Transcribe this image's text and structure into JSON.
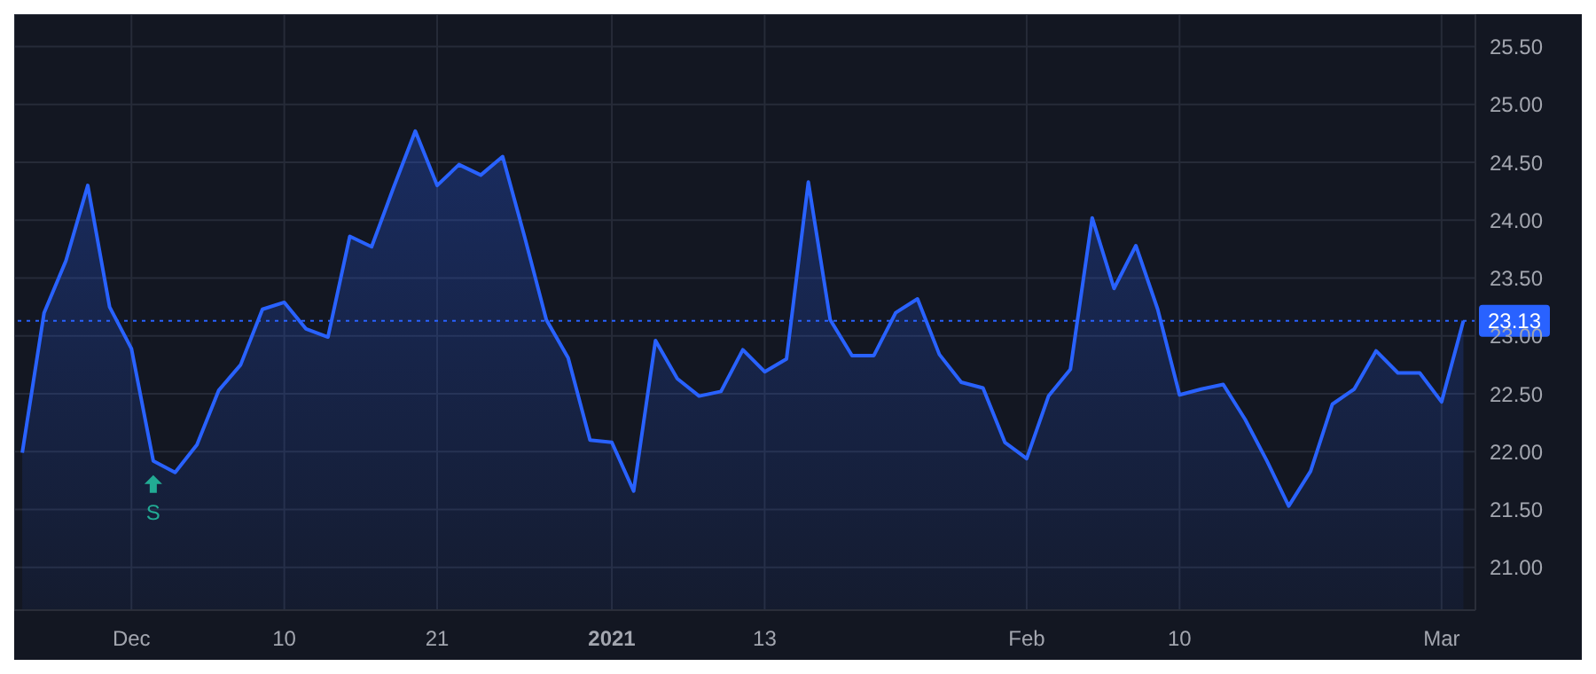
{
  "chart_data": {
    "type": "area",
    "categories": [
      null,
      null,
      null,
      null,
      null,
      "Dec",
      null,
      null,
      null,
      null,
      null,
      null,
      "10",
      null,
      null,
      null,
      null,
      null,
      null,
      "21",
      null,
      null,
      null,
      null,
      null,
      null,
      null,
      "2021",
      null,
      null,
      null,
      null,
      null,
      null,
      "13",
      null,
      null,
      null,
      null,
      null,
      null,
      null,
      null,
      null,
      null,
      null,
      "Feb",
      null,
      null,
      null,
      null,
      null,
      null,
      "10",
      null,
      null,
      null,
      null,
      null,
      null,
      null,
      null,
      null,
      null,
      null,
      "Mar",
      null
    ],
    "series": [
      {
        "color": "#2962ff",
        "values": [
          21.99,
          23.2,
          23.65,
          24.3,
          23.25,
          22.89,
          21.92,
          21.82,
          22.06,
          22.53,
          22.75,
          23.23,
          23.29,
          23.06,
          22.99,
          23.86,
          23.77,
          24.28,
          24.77,
          24.3,
          24.48,
          24.39,
          24.55,
          23.86,
          23.14,
          22.81,
          22.1,
          22.08,
          21.66,
          22.96,
          22.63,
          22.48,
          22.52,
          22.88,
          22.69,
          22.8,
          24.33,
          23.14,
          22.83,
          22.83,
          23.2,
          23.32,
          22.84,
          22.6,
          22.55,
          22.08,
          21.94,
          22.48,
          22.71,
          24.02,
          23.41,
          23.78,
          23.23,
          22.49,
          22.54,
          22.58,
          22.28,
          21.92,
          21.53,
          21.83,
          22.41,
          22.54,
          22.87,
          22.68,
          22.68,
          22.43,
          23.13
        ]
      }
    ],
    "ylim": [
      20.63,
      25.78
    ],
    "yticks": [
      {
        "value": 21,
        "label": "21.00"
      },
      {
        "value": 21.5,
        "label": "21.50"
      },
      {
        "value": 22,
        "label": "22.00"
      },
      {
        "value": 22.5,
        "label": "22.50"
      },
      {
        "value": 23,
        "label": "23.00"
      },
      {
        "value": 23.5,
        "label": "23.50"
      },
      {
        "value": 24,
        "label": "24.00"
      },
      {
        "value": 24.5,
        "label": "24.50"
      },
      {
        "value": 25,
        "label": "25.00"
      },
      {
        "value": 25.5,
        "label": "25.50"
      }
    ],
    "ref_lines": [
      {
        "axis": "y",
        "value": 23.13,
        "label": "23.13",
        "color": "#2962ff",
        "line_style": "dotted"
      }
    ],
    "annotations": [
      {
        "text": "S",
        "y": 21.92
      }
    ],
    "grid": true
  }
}
